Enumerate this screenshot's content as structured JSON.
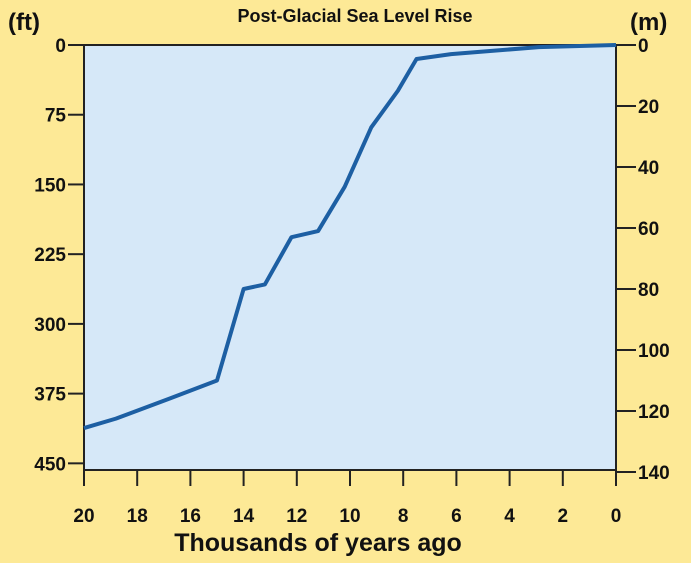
{
  "chart_data": {
    "type": "line",
    "title": "Post-Glacial Sea Level Rise",
    "xlabel": "Thousands of years ago",
    "ylabel_left": "(ft)",
    "ylabel_right": "(m)",
    "xlim": [
      20,
      0
    ],
    "ylim_m": [
      0,
      140
    ],
    "ylim_ft": [
      0,
      450
    ],
    "y_inverted": true,
    "x_ticks": [
      20,
      18,
      16,
      14,
      12,
      10,
      8,
      6,
      4,
      2,
      0
    ],
    "y_ticks_ft": [
      0,
      75,
      150,
      225,
      300,
      375,
      450
    ],
    "y_ticks_m": [
      0,
      20,
      40,
      60,
      80,
      100,
      120,
      140
    ],
    "grid": false,
    "colors": {
      "background": "#fde996",
      "plot_area": "#d6e8f8",
      "line": "#1d5fa3",
      "axis": "#222222"
    },
    "series": [
      {
        "x": [
          20,
          18.8,
          16.8,
          15.0,
          14.0,
          13.2,
          12.2,
          11.2,
          10.2,
          9.2,
          8.2,
          7.5,
          6.2,
          4.5,
          2.9,
          0
        ],
        "y": [
          125.6,
          122.5,
          116,
          110,
          80,
          78.5,
          63,
          61,
          46.5,
          27,
          15,
          4.6,
          3,
          1.8,
          0.7,
          0
        ]
      }
    ]
  }
}
